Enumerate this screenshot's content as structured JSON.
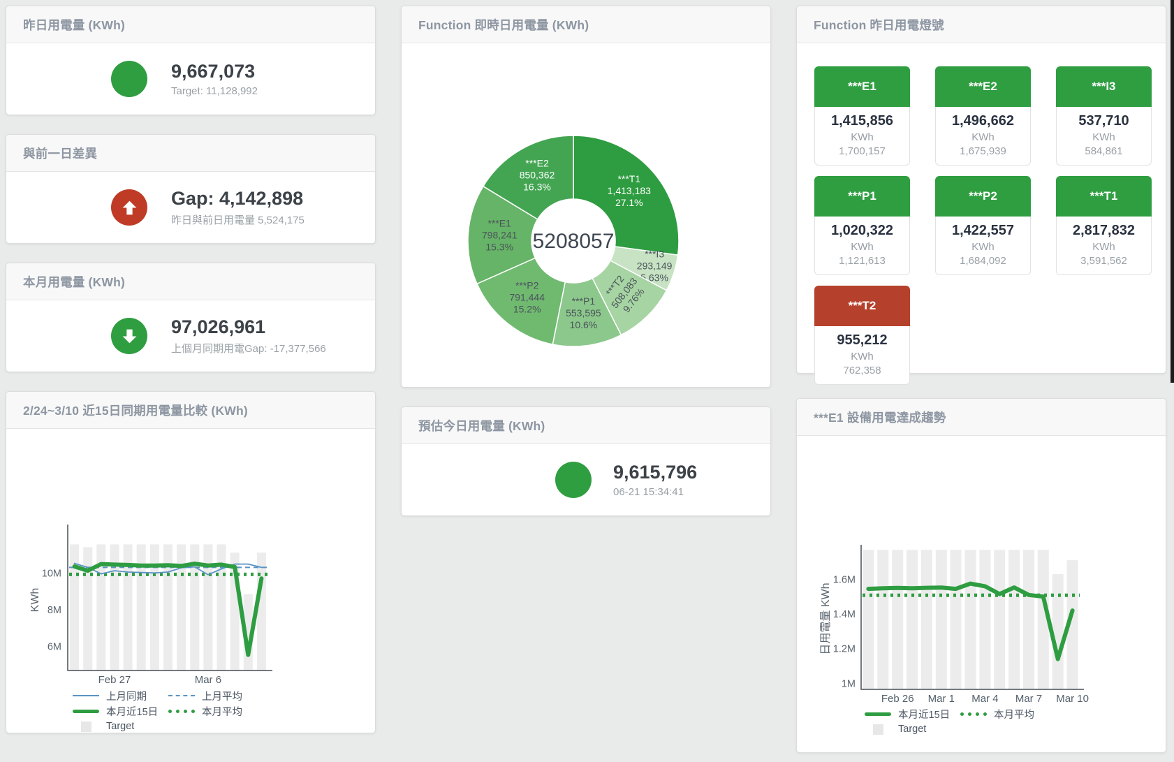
{
  "colors": {
    "green": "#2f9e41",
    "red": "#bf3b25",
    "tile_red": "#b5412c",
    "blue_line": "#5b93c4",
    "bar_gray": "#ececec"
  },
  "cards": {
    "yesterday": {
      "title": "昨日用電量 (KWh)",
      "value": "9,667,073",
      "sub": "Target: 11,128,992",
      "status": "green"
    },
    "gap": {
      "title": "與前一日差異",
      "value": "Gap: 4,142,898",
      "sub": "昨日與前日用電量 5,524,175",
      "status": "red"
    },
    "month": {
      "title": "本月用電量 (KWh)",
      "value": "97,026,961",
      "sub": "上個月同期用電Gap: -17,377,566",
      "status": "green"
    },
    "estimate": {
      "title": "預估今日用電量 (KWh)",
      "value": "9,615,796",
      "sub": "06-21 15:34:41",
      "status": "green"
    },
    "compare": {
      "title": "2/24~3/10 近15日同期用電量比較 (KWh)"
    },
    "donut": {
      "title": "Function 即時日用電量 (KWh)"
    },
    "lights": {
      "title": "Function 昨日用電燈號"
    },
    "trend": {
      "title": "***E1 設備用電達成趨勢"
    }
  },
  "lights": {
    "unit": "KWh",
    "tiles": [
      {
        "label": "***E1",
        "value": "1,415,856",
        "target": "1,700,157",
        "status": "green"
      },
      {
        "label": "***E2",
        "value": "1,496,662",
        "target": "1,675,939",
        "status": "green"
      },
      {
        "label": "***I3",
        "value": "537,710",
        "target": "584,861",
        "status": "green"
      },
      {
        "label": "***P1",
        "value": "1,020,322",
        "target": "1,121,613",
        "status": "green"
      },
      {
        "label": "***P2",
        "value": "1,422,557",
        "target": "1,684,092",
        "status": "green"
      },
      {
        "label": "***T1",
        "value": "2,817,832",
        "target": "3,591,562",
        "status": "green"
      },
      {
        "label": "***T2",
        "value": "955,212",
        "target": "762,358",
        "status": "red"
      }
    ]
  },
  "chart_data": [
    {
      "id": "donut",
      "type": "pie",
      "title": "Function 即時日用電量 (KWh)",
      "center_total": "5208057",
      "slices": [
        {
          "name": "***T1",
          "value": 1413183,
          "value_display": "1,413,183",
          "pct": "27.1%",
          "color": "#2e9c40",
          "label_color": "#ffffff"
        },
        {
          "name": "***I3",
          "value": 293149,
          "value_display": "293,149",
          "pct": "5.63%",
          "color": "#c7e3c3",
          "label_color": "#4b545c"
        },
        {
          "name": "***T2",
          "value": 508083,
          "value_display": "508,083",
          "pct": "9.76%",
          "color": "#a6d4a2",
          "label_color": "#4b545c"
        },
        {
          "name": "***P1",
          "value": 553595,
          "value_display": "553,595",
          "pct": "10.6%",
          "color": "#8cc88b",
          "label_color": "#4b545c"
        },
        {
          "name": "***P2",
          "value": 791444,
          "value_display": "791,444",
          "pct": "15.2%",
          "color": "#70ba70",
          "label_color": "#4b545c"
        },
        {
          "name": "***E1",
          "value": 798241,
          "value_display": "798,241",
          "pct": "15.3%",
          "color": "#66b467",
          "label_color": "#4b545c"
        },
        {
          "name": "***E2",
          "value": 850362,
          "value_display": "850,362",
          "pct": "16.3%",
          "color": "#43a552",
          "label_color": "#ffffff"
        }
      ]
    },
    {
      "id": "compare",
      "type": "line",
      "title": "2/24~3/10 近15日同期用電量比較 (KWh)",
      "xlabel": "",
      "ylabel": "KWh",
      "unit": "M",
      "x_labels": [
        "2/24",
        "2/25",
        "2/26",
        "2/27",
        "2/28",
        "3/1",
        "3/2",
        "3/3",
        "3/4",
        "3/5",
        "3/6",
        "3/7",
        "3/8",
        "3/9",
        "3/10"
      ],
      "xticks": [
        {
          "index": 3,
          "label": "Feb 27"
        },
        {
          "index": 10,
          "label": "Mar 6"
        }
      ],
      "yticks": [
        {
          "v": 6,
          "label": "6M"
        },
        {
          "v": 8,
          "label": "8M"
        },
        {
          "v": 10,
          "label": "10M"
        }
      ],
      "ylim": [
        4.7,
        12.4
      ],
      "grid": false,
      "legend_position": "bottom",
      "series": [
        {
          "name": "Target",
          "kind": "bar",
          "color": "#ececec",
          "values": [
            11.55,
            11.4,
            11.55,
            11.55,
            11.55,
            11.55,
            11.55,
            11.55,
            11.55,
            11.55,
            11.55,
            11.55,
            11.1,
            8.85,
            11.1
          ]
        },
        {
          "name": "上月同期",
          "kind": "line",
          "color": "#5b93c4",
          "width": 1.8,
          "values": [
            10.52,
            10.3,
            9.95,
            10.12,
            10.05,
            10.02,
            10.0,
            10.05,
            10.28,
            10.33,
            9.9,
            10.22,
            10.48,
            10.48,
            10.3
          ]
        },
        {
          "name": "上月平均",
          "kind": "hline-dashed",
          "color": "#5b93c4",
          "width": 2,
          "value": 10.3
        },
        {
          "name": "本月近15日",
          "kind": "line",
          "color": "#2e9d41",
          "width": 6,
          "values": [
            10.35,
            10.12,
            10.48,
            10.45,
            10.43,
            10.4,
            10.4,
            10.42,
            10.38,
            10.5,
            10.4,
            10.45,
            10.32,
            5.55,
            9.7
          ]
        },
        {
          "name": "本月平均",
          "kind": "hline-dotted",
          "color": "#2e9d41",
          "width": 5,
          "value": 9.92
        }
      ]
    },
    {
      "id": "trend",
      "type": "line",
      "title": "***E1 設備用電達成趨勢",
      "xlabel": "",
      "ylabel": "日用電量 KWh",
      "unit": "M",
      "x_labels": [
        "2/24",
        "2/25",
        "2/26",
        "2/27",
        "2/28",
        "3/1",
        "3/2",
        "3/3",
        "3/4",
        "3/5",
        "3/6",
        "3/7",
        "3/8",
        "3/9",
        "3/10"
      ],
      "xticks": [
        {
          "index": 2,
          "label": "Feb 26"
        },
        {
          "index": 5,
          "label": "Mar 1"
        },
        {
          "index": 8,
          "label": "Mar 4"
        },
        {
          "index": 11,
          "label": "Mar 7"
        },
        {
          "index": 14,
          "label": "Mar 10"
        }
      ],
      "yticks": [
        {
          "v": 1.0,
          "label": "1M"
        },
        {
          "v": 1.2,
          "label": "1.2M"
        },
        {
          "v": 1.4,
          "label": "1.4M"
        },
        {
          "v": 1.6,
          "label": "1.6M"
        }
      ],
      "ylim": [
        0.965,
        1.775
      ],
      "grid": false,
      "legend_position": "bottom",
      "series": [
        {
          "name": "Target",
          "kind": "bar",
          "color": "#ececec",
          "values": [
            1.77,
            1.77,
            1.77,
            1.77,
            1.77,
            1.77,
            1.77,
            1.77,
            1.77,
            1.77,
            1.77,
            1.77,
            1.77,
            1.63,
            1.71
          ]
        },
        {
          "name": "本月近15日",
          "kind": "line",
          "color": "#2e9d41",
          "width": 6,
          "values": [
            1.545,
            1.548,
            1.55,
            1.548,
            1.551,
            1.552,
            1.545,
            1.575,
            1.56,
            1.515,
            1.553,
            1.51,
            1.5,
            1.14,
            1.42
          ]
        },
        {
          "name": "本月平均",
          "kind": "hline-dotted",
          "color": "#2e9d41",
          "width": 5,
          "value": 1.508
        }
      ]
    }
  ]
}
